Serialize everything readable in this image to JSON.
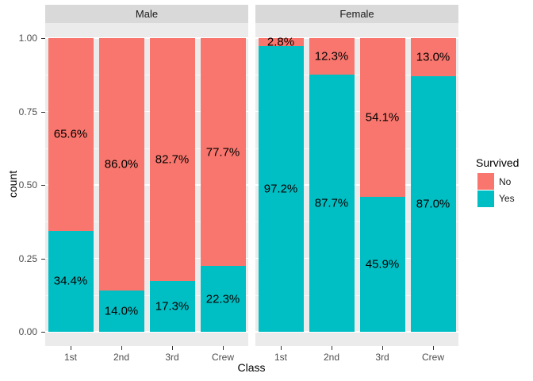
{
  "chart_data": {
    "type": "bar",
    "stacked": true,
    "normalized": true,
    "title": "",
    "xlabel": "Class",
    "ylabel": "count",
    "categories": [
      "1st",
      "2nd",
      "3rd",
      "Crew"
    ],
    "y_axis": {
      "range": [
        0,
        1
      ],
      "ticks": [
        {
          "value": 1.0,
          "label": "1.00"
        },
        {
          "value": 0.75,
          "label": "0.75"
        },
        {
          "value": 0.5,
          "label": "0.50"
        },
        {
          "value": 0.25,
          "label": "0.25"
        },
        {
          "value": 0.0,
          "label": "0.00"
        }
      ],
      "minor_ticks": [
        0.875,
        0.625,
        0.375,
        0.125
      ],
      "grid": true
    },
    "legend": {
      "title": "Survived",
      "position": "right",
      "entries": [
        {
          "label": "No",
          "color": "#F8766D"
        },
        {
          "label": "Yes",
          "color": "#00BFC4"
        }
      ]
    },
    "facets": [
      {
        "label": "Male",
        "series": [
          {
            "name": "No",
            "color": "#F8766D",
            "values": [
              0.656,
              0.86,
              0.827,
              0.777
            ],
            "labels": [
              "65.6%",
              "86.0%",
              "82.7%",
              "77.7%"
            ]
          },
          {
            "name": "Yes",
            "color": "#00BFC4",
            "values": [
              0.344,
              0.14,
              0.173,
              0.223
            ],
            "labels": [
              "34.4%",
              "14.0%",
              "17.3%",
              "22.3%"
            ]
          }
        ]
      },
      {
        "label": "Female",
        "series": [
          {
            "name": "No",
            "color": "#F8766D",
            "values": [
              0.028,
              0.123,
              0.541,
              0.13
            ],
            "labels": [
              "2.8%",
              "12.3%",
              "54.1%",
              "13.0%"
            ]
          },
          {
            "name": "Yes",
            "color": "#00BFC4",
            "values": [
              0.972,
              0.877,
              0.459,
              0.87
            ],
            "labels": [
              "97.2%",
              "87.7%",
              "45.9%",
              "87.0%"
            ]
          }
        ]
      }
    ],
    "theme": {
      "panel_bg": "#EBEBEB",
      "strip_bg": "#D9D9D9",
      "grid_color": "#FFFFFF",
      "tick_text_color": "#4D4D4D",
      "label_color": "#000000"
    }
  }
}
